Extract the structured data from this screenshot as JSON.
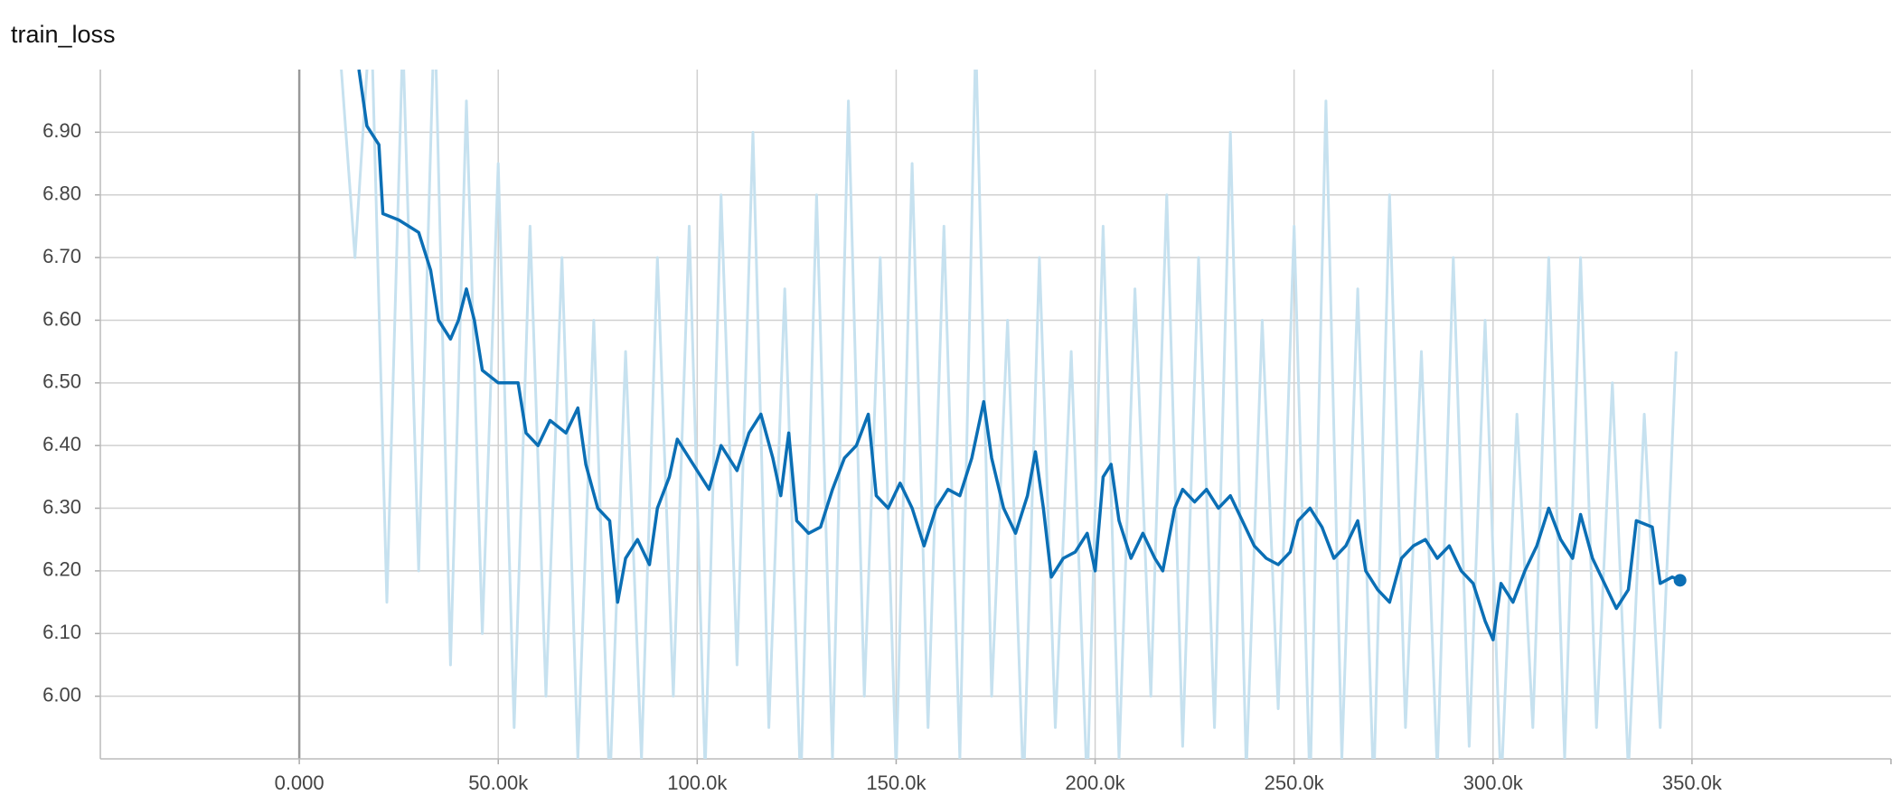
{
  "chart_data": {
    "type": "line",
    "title": "train_loss",
    "xlim": [
      -50000,
      400000
    ],
    "xticks": [
      {
        "value": 0,
        "label": "0.000"
      },
      {
        "value": 50000,
        "label": "50.00k"
      },
      {
        "value": 100000,
        "label": "100.0k"
      },
      {
        "value": 150000,
        "label": "150.0k"
      },
      {
        "value": 200000,
        "label": "200.0k"
      },
      {
        "value": 250000,
        "label": "250.0k"
      },
      {
        "value": 300000,
        "label": "300.0k"
      },
      {
        "value": 350000,
        "label": "350.0k"
      }
    ],
    "ylim": [
      5.9,
      7.0
    ],
    "yticks": [
      {
        "value": 6.0,
        "label": "6.00"
      },
      {
        "value": 6.1,
        "label": "6.10"
      },
      {
        "value": 6.2,
        "label": "6.20"
      },
      {
        "value": 6.3,
        "label": "6.30"
      },
      {
        "value": 6.4,
        "label": "6.40"
      },
      {
        "value": 6.5,
        "label": "6.50"
      },
      {
        "value": 6.6,
        "label": "6.60"
      },
      {
        "value": 6.7,
        "label": "6.70"
      },
      {
        "value": 6.8,
        "label": "6.80"
      },
      {
        "value": 6.9,
        "label": "6.90"
      }
    ],
    "grid": true,
    "series": [
      {
        "color": "#c6e1ef",
        "x": [
          10000,
          14000,
          18000,
          22000,
          26000,
          30000,
          34000,
          38000,
          42000,
          46000,
          50000,
          54000,
          58000,
          62000,
          66000,
          70000,
          74000,
          78000,
          82000,
          86000,
          90000,
          94000,
          98000,
          102000,
          106000,
          110000,
          114000,
          118000,
          122000,
          126000,
          130000,
          134000,
          138000,
          142000,
          146000,
          150000,
          154000,
          158000,
          162000,
          166000,
          170000,
          174000,
          178000,
          182000,
          186000,
          190000,
          194000,
          198000,
          202000,
          206000,
          210000,
          214000,
          218000,
          222000,
          226000,
          230000,
          234000,
          238000,
          242000,
          246000,
          250000,
          254000,
          258000,
          262000,
          266000,
          270000,
          274000,
          278000,
          282000,
          286000,
          290000,
          294000,
          298000,
          302000,
          306000,
          310000,
          314000,
          318000,
          322000,
          326000,
          330000,
          334000,
          338000,
          342000,
          346000
        ],
        "values": [
          7.05,
          6.7,
          7.1,
          6.15,
          7.05,
          6.2,
          7.1,
          6.05,
          6.95,
          6.1,
          6.85,
          5.95,
          6.75,
          6.0,
          6.7,
          5.9,
          6.6,
          5.85,
          6.55,
          5.9,
          6.7,
          6.0,
          6.75,
          5.88,
          6.8,
          6.05,
          6.9,
          5.95,
          6.65,
          5.85,
          6.8,
          5.9,
          6.95,
          6.0,
          6.7,
          5.88,
          6.85,
          5.95,
          6.75,
          5.9,
          7.05,
          6.0,
          6.6,
          5.85,
          6.7,
          5.95,
          6.55,
          5.85,
          6.75,
          5.9,
          6.65,
          6.0,
          6.8,
          5.92,
          6.7,
          5.95,
          6.9,
          5.88,
          6.6,
          5.98,
          6.75,
          5.85,
          6.95,
          5.9,
          6.65,
          5.85,
          6.8,
          5.95,
          6.55,
          5.88,
          6.7,
          5.92,
          6.6,
          5.85,
          6.45,
          5.95,
          6.7,
          5.9,
          6.7,
          5.95,
          6.5,
          5.88,
          6.45,
          5.95,
          6.55
        ]
      },
      {
        "color": "#0b6fb5",
        "x": [
          15000,
          17000,
          20000,
          21000,
          25000,
          30000,
          33000,
          35000,
          38000,
          40000,
          42000,
          44000,
          46000,
          50000,
          55000,
          57000,
          60000,
          63000,
          67000,
          70000,
          72000,
          75000,
          78000,
          80000,
          82000,
          85000,
          88000,
          90000,
          93000,
          95000,
          98000,
          100000,
          103000,
          106000,
          110000,
          113000,
          116000,
          119000,
          121000,
          123000,
          125000,
          128000,
          131000,
          134000,
          137000,
          140000,
          143000,
          145000,
          148000,
          151000,
          154000,
          157000,
          160000,
          163000,
          166000,
          169000,
          172000,
          174000,
          177000,
          180000,
          183000,
          185000,
          187000,
          189000,
          192000,
          195000,
          198000,
          200000,
          202000,
          204000,
          206000,
          209000,
          212000,
          215000,
          217000,
          220000,
          222000,
          225000,
          228000,
          231000,
          234000,
          237000,
          240000,
          243000,
          246000,
          249000,
          251000,
          254000,
          257000,
          260000,
          263000,
          266000,
          268000,
          271000,
          274000,
          277000,
          280000,
          283000,
          286000,
          289000,
          292000,
          295000,
          298000,
          300000,
          302000,
          305000,
          308000,
          311000,
          314000,
          317000,
          320000,
          322000,
          325000,
          328000,
          331000,
          334000,
          336000,
          340000,
          342000,
          345000,
          347000
        ],
        "values": [
          7.0,
          6.91,
          6.88,
          6.77,
          6.76,
          6.74,
          6.68,
          6.6,
          6.57,
          6.6,
          6.65,
          6.6,
          6.52,
          6.5,
          6.5,
          6.42,
          6.4,
          6.44,
          6.42,
          6.46,
          6.37,
          6.3,
          6.28,
          6.15,
          6.22,
          6.25,
          6.21,
          6.3,
          6.35,
          6.41,
          6.38,
          6.36,
          6.33,
          6.4,
          6.36,
          6.42,
          6.45,
          6.38,
          6.32,
          6.42,
          6.28,
          6.26,
          6.27,
          6.33,
          6.38,
          6.4,
          6.45,
          6.32,
          6.3,
          6.34,
          6.3,
          6.24,
          6.3,
          6.33,
          6.32,
          6.38,
          6.47,
          6.38,
          6.3,
          6.26,
          6.32,
          6.39,
          6.3,
          6.19,
          6.22,
          6.23,
          6.26,
          6.2,
          6.35,
          6.37,
          6.28,
          6.22,
          6.26,
          6.22,
          6.2,
          6.3,
          6.33,
          6.31,
          6.33,
          6.3,
          6.32,
          6.28,
          6.24,
          6.22,
          6.21,
          6.23,
          6.28,
          6.3,
          6.27,
          6.22,
          6.24,
          6.28,
          6.2,
          6.17,
          6.15,
          6.22,
          6.24,
          6.25,
          6.22,
          6.24,
          6.2,
          6.18,
          6.12,
          6.09,
          6.18,
          6.15,
          6.2,
          6.24,
          6.3,
          6.25,
          6.22,
          6.29,
          6.22,
          6.18,
          6.14,
          6.17,
          6.28,
          6.27,
          6.18,
          6.19,
          6.185
        ]
      }
    ]
  }
}
